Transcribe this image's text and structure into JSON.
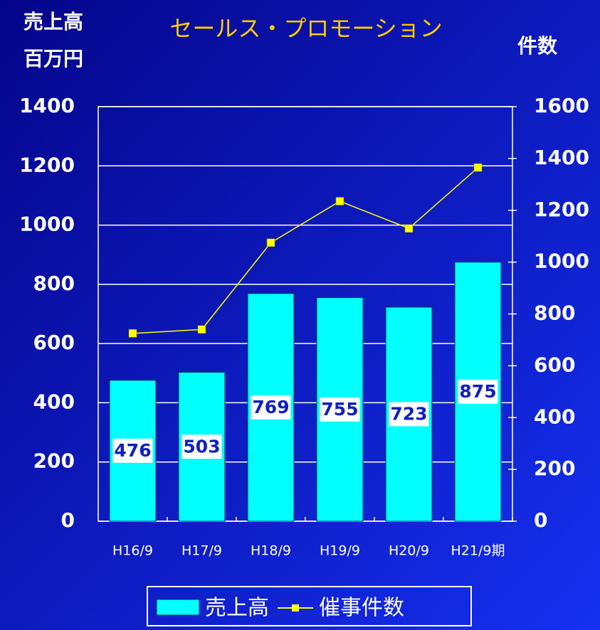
{
  "chart_data": {
    "type": "bar",
    "title": "セールス・プロモーション",
    "y_label": [
      "売上高",
      "百万円"
    ],
    "y2_label": "件数",
    "categories": [
      "H16/9",
      "H17/9",
      "H18/9",
      "H19/9",
      "H20/9",
      "H21/9期"
    ],
    "series": [
      {
        "name": "売上高",
        "type": "bar",
        "color": "#00ffff",
        "values": [
          476,
          503,
          769,
          755,
          723,
          875
        ]
      },
      {
        "name": "催事件数",
        "type": "line",
        "axis": "y2",
        "color": "#ffff00",
        "values": [
          725,
          740,
          1075,
          1235,
          1130,
          1365
        ]
      }
    ],
    "ylim": [
      0,
      1400
    ],
    "yticks": [
      0,
      200,
      400,
      600,
      800,
      1000,
      1200,
      1400
    ],
    "y2lim": [
      0,
      1600
    ],
    "y2ticks": [
      0,
      200,
      400,
      600,
      800,
      1000,
      1200,
      1400,
      1600
    ],
    "grid": true,
    "legend": "bottom"
  }
}
